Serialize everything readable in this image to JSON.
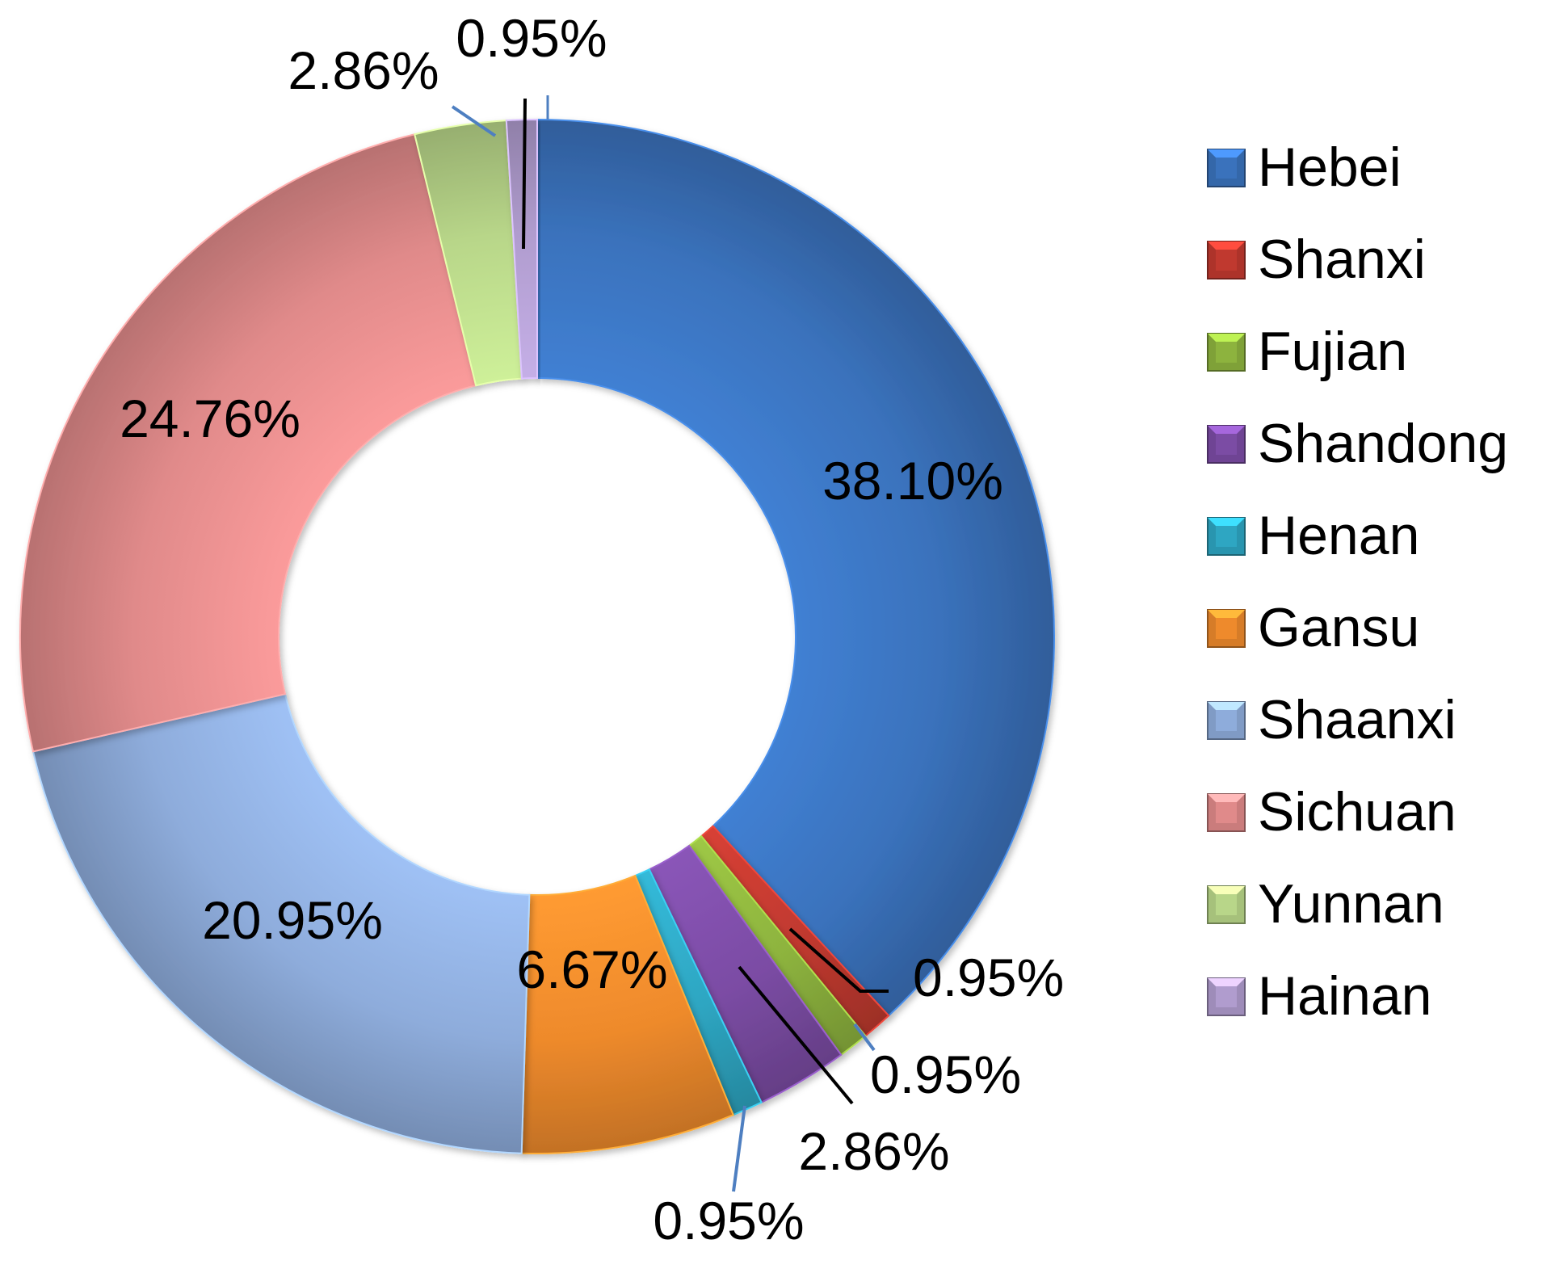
{
  "chart_data": {
    "type": "donut",
    "title": "",
    "unit": "%",
    "categories": [
      "Hebei",
      "Shanxi",
      "Fujian",
      "Shandong",
      "Henan",
      "Gansu",
      "Shaanxi",
      "Sichuan",
      "Yunnan",
      "Hainan"
    ],
    "values": [
      38.1,
      0.95,
      0.95,
      2.86,
      0.95,
      6.67,
      20.95,
      24.76,
      2.86,
      0.95
    ],
    "labels": [
      "38.10%",
      "0.95%",
      "0.95%",
      "2.86%",
      "0.95%",
      "6.67%",
      "20.95%",
      "24.76%",
      "2.86%",
      "0.95%"
    ],
    "colors": [
      "#3A72BC",
      "#C0392F",
      "#8DB33E",
      "#7B4CA4",
      "#2EA6C2",
      "#EE8A2C",
      "#8EACDB",
      "#E08A8A",
      "#B8D689",
      "#B09CCE"
    ],
    "start_angle_deg": 0,
    "direction": "clockwise",
    "legend": {
      "position": "right",
      "entries": [
        "Hebei",
        "Shanxi",
        "Fujian",
        "Shandong",
        "Henan",
        "Gansu",
        "Shaanxi",
        "Sichuan",
        "Yunnan",
        "Hainan"
      ]
    }
  }
}
